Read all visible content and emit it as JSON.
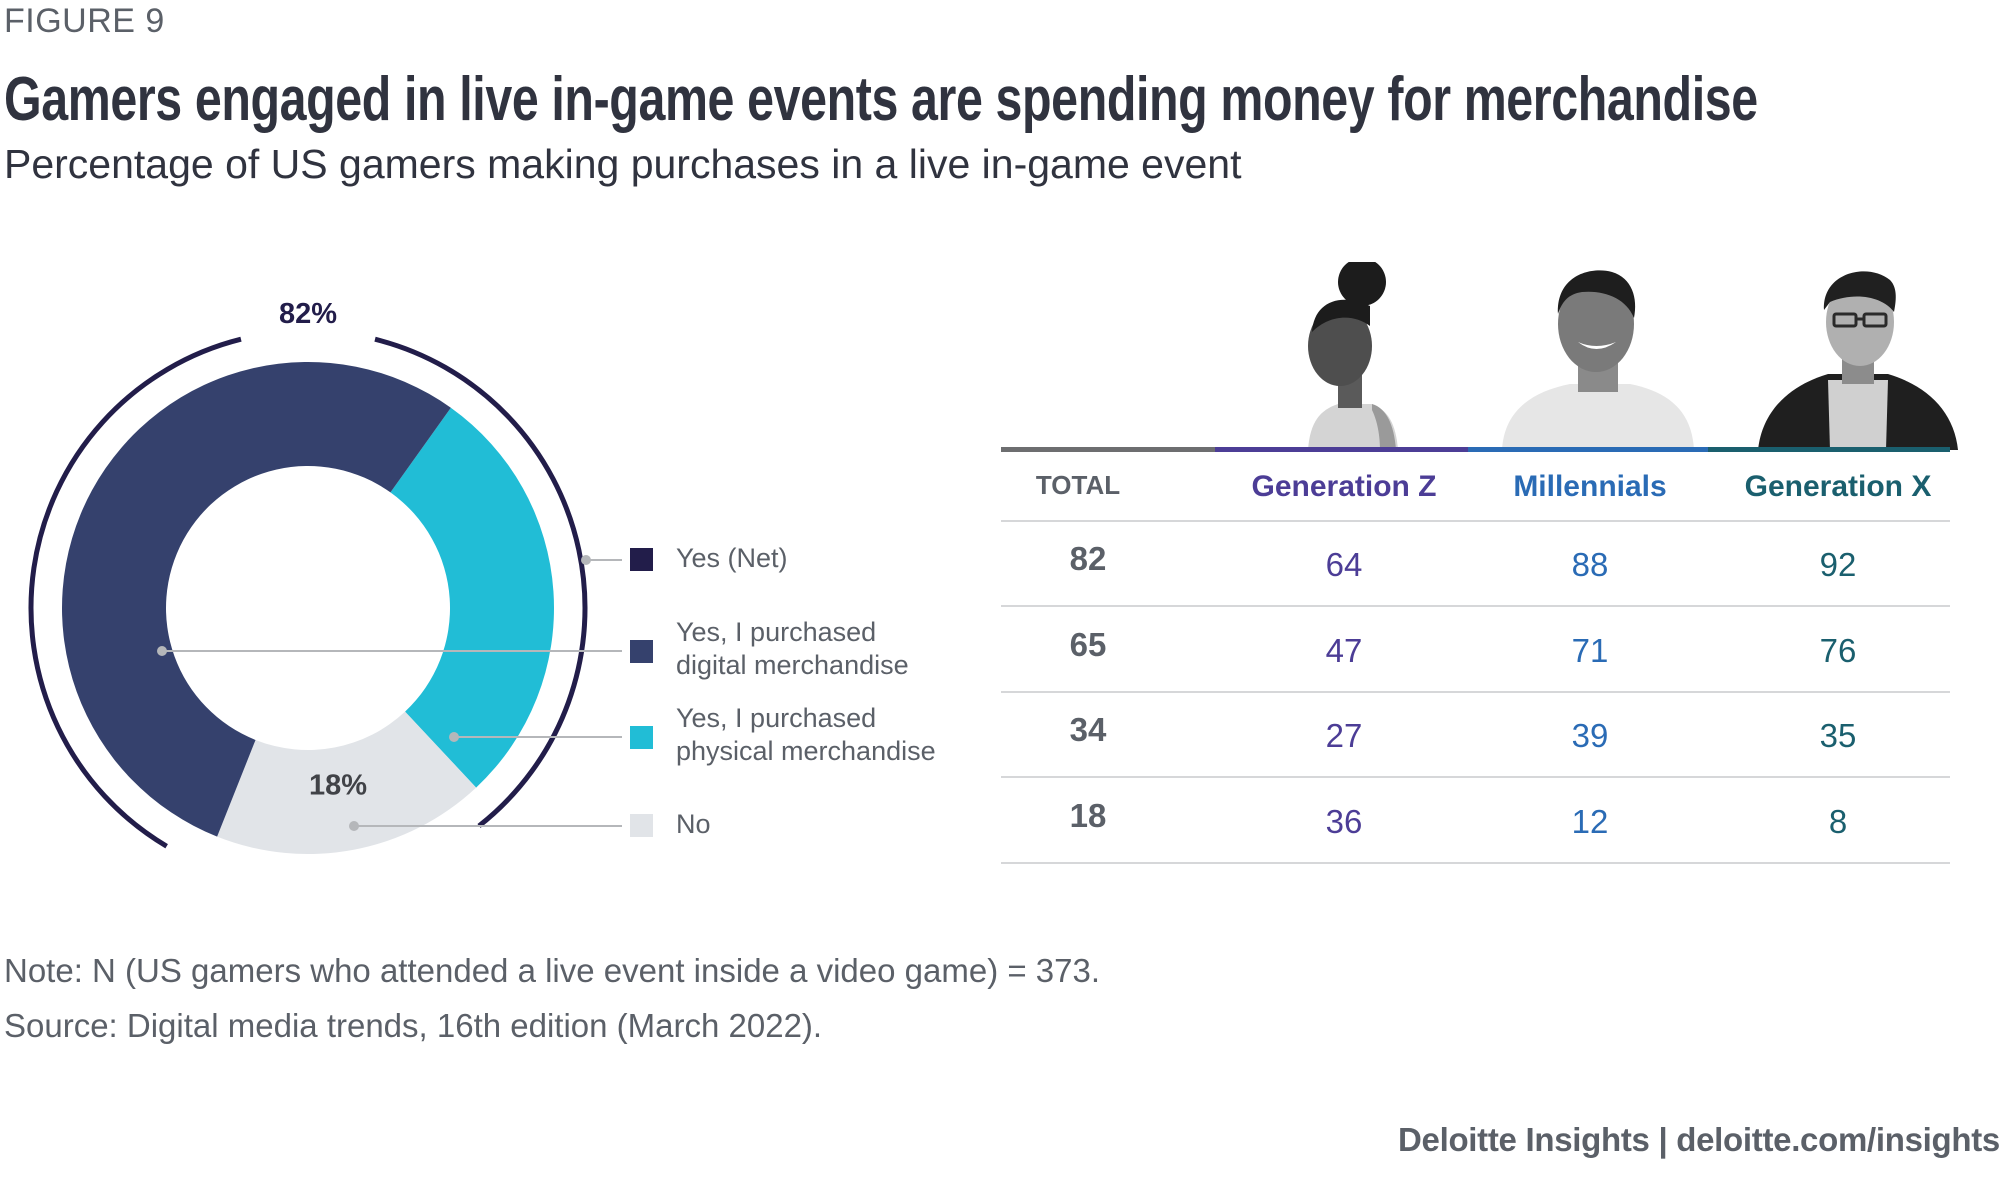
{
  "figure_label": "FIGURE 9",
  "title": "Gamers engaged in live in-game events are spending money for merchandise",
  "subtitle": "Percentage of US gamers making purchases in a live in-game event",
  "chart_data": [
    {
      "type": "pie",
      "variant": "donut",
      "title": "Percentage of US gamers making purchases in a live in-game event",
      "series": [
        {
          "name": "Yes, I purchased digital merchandise",
          "value": 65,
          "color": "#35416d"
        },
        {
          "name": "Yes, I purchased physical merchandise",
          "value": 34,
          "color": "#21bdd6"
        },
        {
          "name": "No",
          "value": 18,
          "color": "#e1e4e8"
        }
      ],
      "net": {
        "name": "Yes (Net)",
        "value": 82,
        "label": "82%",
        "color": "#221d4a"
      },
      "no_label": "18%",
      "legend": [
        {
          "label_lines": [
            "Yes (Net)"
          ],
          "color": "#221d4a"
        },
        {
          "label_lines": [
            "Yes, I purchased",
            "digital merchandise"
          ],
          "color": "#35416d"
        },
        {
          "label_lines": [
            "Yes, I purchased",
            "physical merchandise"
          ],
          "color": "#21bdd6"
        },
        {
          "label_lines": [
            "No"
          ],
          "color": "#e1e4e8"
        }
      ],
      "legend_position": "right",
      "unit": "%"
    },
    {
      "type": "table",
      "columns": [
        {
          "label": "TOTAL",
          "color": "#5b6068",
          "rule_color": "#6d6e70"
        },
        {
          "label": "Generation Z",
          "color": "#4c3d96",
          "rule_color": "#4c3d96",
          "portrait": "young-woman-portrait"
        },
        {
          "label": "Millennials",
          "color": "#2a6bb5",
          "rule_color": "#2a6bb5",
          "portrait": "smiling-man-portrait"
        },
        {
          "label": "Generation X",
          "color": "#1a5f6e",
          "rule_color": "#1a5f6e",
          "portrait": "man-with-glasses-portrait"
        }
      ],
      "row_categories": [
        "Yes (Net)",
        "Yes, I purchased digital merchandise",
        "Yes, I purchased physical merchandise",
        "No"
      ],
      "rows": [
        [
          "82",
          "64",
          "88",
          "92"
        ],
        [
          "65",
          "47",
          "71",
          "76"
        ],
        [
          "34",
          "27",
          "39",
          "35"
        ],
        [
          "18",
          "36",
          "12",
          "8"
        ]
      ]
    }
  ],
  "note": "Note: N (US gamers who attended a live event inside a video game) = 373.",
  "source": "Source: Digital media trends, 16th edition (March 2022).",
  "credit": "Deloitte Insights | deloitte.com/insights"
}
